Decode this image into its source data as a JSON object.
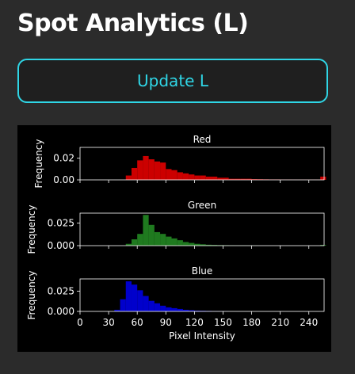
{
  "page": {
    "title": "Spot Analytics (L)"
  },
  "controls": {
    "update_label": "Update L"
  },
  "chart_data": {
    "type": "bar",
    "xlabel": "Pixel Intensity",
    "xlim": [
      0,
      256
    ],
    "xticks": [
      0,
      30,
      60,
      90,
      120,
      150,
      180,
      210,
      240
    ],
    "bin_width": 6,
    "panels": [
      {
        "title": "Red",
        "color": "#cc0000",
        "ylabel": "Frequency",
        "ylim": [
          0,
          0.03
        ],
        "yticks": [
          0.0,
          0.02
        ],
        "ytick_labels": [
          "0.00",
          "0.02"
        ],
        "bins": [
          {
            "x": 48,
            "y": 0.004
          },
          {
            "x": 54,
            "y": 0.011
          },
          {
            "x": 60,
            "y": 0.018
          },
          {
            "x": 66,
            "y": 0.022
          },
          {
            "x": 72,
            "y": 0.019
          },
          {
            "x": 78,
            "y": 0.017
          },
          {
            "x": 84,
            "y": 0.016
          },
          {
            "x": 90,
            "y": 0.01
          },
          {
            "x": 96,
            "y": 0.009
          },
          {
            "x": 102,
            "y": 0.007
          },
          {
            "x": 108,
            "y": 0.006
          },
          {
            "x": 114,
            "y": 0.005
          },
          {
            "x": 120,
            "y": 0.004
          },
          {
            "x": 126,
            "y": 0.004
          },
          {
            "x": 132,
            "y": 0.003
          },
          {
            "x": 138,
            "y": 0.003
          },
          {
            "x": 144,
            "y": 0.002
          },
          {
            "x": 150,
            "y": 0.002
          },
          {
            "x": 156,
            "y": 0.001
          },
          {
            "x": 162,
            "y": 0.001
          },
          {
            "x": 168,
            "y": 0.001
          },
          {
            "x": 174,
            "y": 0.001
          },
          {
            "x": 180,
            "y": 0.0007
          },
          {
            "x": 186,
            "y": 0.0006
          },
          {
            "x": 192,
            "y": 0.0005
          },
          {
            "x": 198,
            "y": 0.0004
          },
          {
            "x": 204,
            "y": 0.0004
          },
          {
            "x": 210,
            "y": 0.0003
          },
          {
            "x": 216,
            "y": 0.0003
          },
          {
            "x": 222,
            "y": 0.0002
          },
          {
            "x": 228,
            "y": 0.0002
          },
          {
            "x": 234,
            "y": 0.0002
          },
          {
            "x": 240,
            "y": 0.0002
          },
          {
            "x": 246,
            "y": 0.0002
          },
          {
            "x": 252,
            "y": 0.003
          }
        ]
      },
      {
        "title": "Green",
        "color": "#1f7a1f",
        "ylabel": "Frequency",
        "ylim": [
          0,
          0.036
        ],
        "yticks": [
          0.0,
          0.025
        ],
        "ytick_labels": [
          "0.000",
          "0.025"
        ],
        "bins": [
          {
            "x": 48,
            "y": 0.002
          },
          {
            "x": 54,
            "y": 0.007
          },
          {
            "x": 60,
            "y": 0.013
          },
          {
            "x": 66,
            "y": 0.034
          },
          {
            "x": 72,
            "y": 0.023
          },
          {
            "x": 78,
            "y": 0.015
          },
          {
            "x": 84,
            "y": 0.013
          },
          {
            "x": 90,
            "y": 0.01
          },
          {
            "x": 96,
            "y": 0.008
          },
          {
            "x": 102,
            "y": 0.006
          },
          {
            "x": 108,
            "y": 0.004
          },
          {
            "x": 114,
            "y": 0.003
          },
          {
            "x": 120,
            "y": 0.002
          },
          {
            "x": 126,
            "y": 0.0015
          },
          {
            "x": 132,
            "y": 0.001
          },
          {
            "x": 138,
            "y": 0.0008
          },
          {
            "x": 144,
            "y": 0.0006
          },
          {
            "x": 150,
            "y": 0.0005
          },
          {
            "x": 156,
            "y": 0.0004
          },
          {
            "x": 162,
            "y": 0.0003
          },
          {
            "x": 168,
            "y": 0.0003
          },
          {
            "x": 174,
            "y": 0.0002
          },
          {
            "x": 180,
            "y": 0.0002
          },
          {
            "x": 252,
            "y": 0.0008
          }
        ]
      },
      {
        "title": "Blue",
        "color": "#0000cc",
        "ylabel": "Frequency",
        "ylim": [
          0,
          0.04
        ],
        "yticks": [
          0.0,
          0.025
        ],
        "ytick_labels": [
          "0.000",
          "0.025"
        ],
        "bins": [
          {
            "x": 36,
            "y": 0.002
          },
          {
            "x": 42,
            "y": 0.015
          },
          {
            "x": 48,
            "y": 0.037
          },
          {
            "x": 54,
            "y": 0.033
          },
          {
            "x": 60,
            "y": 0.026
          },
          {
            "x": 66,
            "y": 0.019
          },
          {
            "x": 72,
            "y": 0.013
          },
          {
            "x": 78,
            "y": 0.01
          },
          {
            "x": 84,
            "y": 0.007
          },
          {
            "x": 90,
            "y": 0.005
          },
          {
            "x": 96,
            "y": 0.004
          },
          {
            "x": 102,
            "y": 0.003
          },
          {
            "x": 108,
            "y": 0.002
          },
          {
            "x": 114,
            "y": 0.0015
          },
          {
            "x": 120,
            "y": 0.001
          },
          {
            "x": 126,
            "y": 0.0008
          },
          {
            "x": 132,
            "y": 0.0006
          },
          {
            "x": 138,
            "y": 0.0004
          },
          {
            "x": 144,
            "y": 0.0003
          },
          {
            "x": 150,
            "y": 0.0002
          }
        ]
      }
    ]
  }
}
